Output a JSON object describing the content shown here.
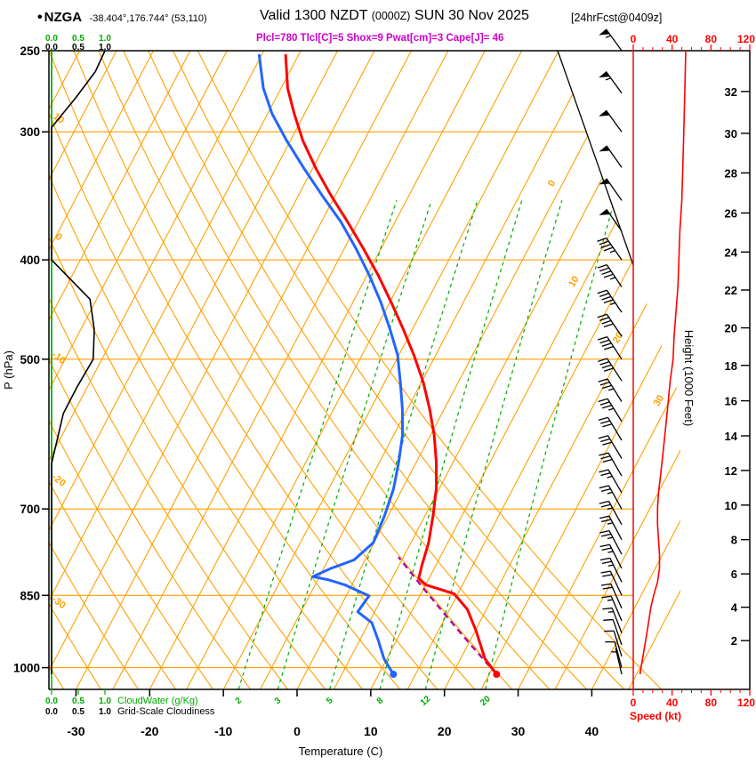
{
  "header": {
    "bullet": "•",
    "station": "NZGA",
    "coords": "-38.404°,176.744° (53,110)",
    "valid": "Valid 1300 NZDT",
    "zulu": "(0000Z)",
    "date": "SUN 30 Nov 2025",
    "fcst": "[24hrFcst@0409z]",
    "indices": "Plcl=780 Tlcl[C]=5 Shox=9 Pwat[cm]=3 Cape[J]= 46"
  },
  "colors": {
    "orange": "#FFA000",
    "green": "#00AA00",
    "temp_red": "#FF0000",
    "dew_blue": "#2264FF",
    "parcel": "#AA00AA",
    "speed_red": "#FF0000",
    "magenta": "#CC00CC",
    "black": "#000000"
  },
  "chart_data": {
    "type": "skewt-logp-sounding",
    "pressure_axis": {
      "label": "P (hPa)",
      "ticks": [
        250,
        300,
        400,
        500,
        700,
        850,
        1000
      ],
      "range": [
        250,
        1050
      ]
    },
    "temperature_axis": {
      "label": "Temperature (C)",
      "ticks": [
        -30,
        -20,
        -10,
        0,
        10,
        20,
        30,
        40
      ]
    },
    "height_axis": {
      "label": "Height (1000 Feet)",
      "ticks": [
        2,
        4,
        6,
        8,
        10,
        12,
        14,
        16,
        18,
        20,
        22,
        24,
        26,
        28,
        30,
        32
      ],
      "ft_to_hpa": [
        [
          2,
          941
        ],
        [
          4,
          873
        ],
        [
          6,
          810
        ],
        [
          8,
          750
        ],
        [
          10,
          694
        ],
        [
          12,
          642
        ],
        [
          14,
          594
        ],
        [
          16,
          549
        ],
        [
          18,
          507
        ],
        [
          20,
          466
        ],
        [
          22,
          428
        ],
        [
          24,
          393
        ],
        [
          26,
          360
        ],
        [
          28,
          329
        ],
        [
          30,
          301
        ],
        [
          32,
          274
        ]
      ]
    },
    "speed_axis": {
      "label": "Speed (kt)",
      "ticks": [
        0,
        40,
        80,
        120
      ],
      "minor_step": 10,
      "max": 120
    },
    "cloudwater_axis": {
      "label": "CloudWater (g/Kg)",
      "ticks": [
        "0.0",
        "0.5",
        "1.0"
      ]
    },
    "cloudiness_axis": {
      "label": "Grid-Scale Cloudiness",
      "ticks": [
        "0.0",
        "0.5",
        "1.0"
      ]
    },
    "isotherm_step": 5,
    "adiabat_step": 5,
    "isotherm_labels": [
      [
        0,
        340
      ],
      [
        10,
        424
      ],
      [
        20,
        481
      ],
      [
        30,
        554
      ]
    ],
    "adiabat_labels": [
      10,
      0,
      -10,
      -20,
      -30
    ],
    "mixing_ratio_lines": [
      2,
      3,
      5,
      8,
      12,
      20
    ],
    "temperature_profile": [
      [
        1015,
        26.0
      ],
      [
        980,
        23.3
      ],
      [
        920,
        20.1
      ],
      [
        877,
        17.4
      ],
      [
        847,
        14.5
      ],
      [
        830,
        10.0
      ],
      [
        818,
        8.6
      ],
      [
        794,
        8.1
      ],
      [
        755,
        7.4
      ],
      [
        711,
        6.1
      ],
      [
        669,
        4.6
      ],
      [
        630,
        2.7
      ],
      [
        593,
        0.5
      ],
      [
        559,
        -2.0
      ],
      [
        526,
        -4.8
      ],
      [
        495,
        -8.0
      ],
      [
        467,
        -11.3
      ],
      [
        440,
        -14.8
      ],
      [
        414,
        -18.5
      ],
      [
        390,
        -22.4
      ],
      [
        367,
        -26.5
      ],
      [
        346,
        -30.6
      ],
      [
        326,
        -34.5
      ],
      [
        306,
        -38.3
      ],
      [
        288,
        -41.4
      ],
      [
        272,
        -44.1
      ],
      [
        252,
        -46.8
      ]
    ],
    "dewpoint_profile": [
      [
        1015,
        12.0
      ],
      [
        980,
        9.6
      ],
      [
        940,
        7.5
      ],
      [
        904,
        5.4
      ],
      [
        882,
        2.7
      ],
      [
        851,
        3.1
      ],
      [
        830,
        -1.0
      ],
      [
        821,
        -3.5
      ],
      [
        815,
        -5.9
      ],
      [
        800,
        -4.0
      ],
      [
        785,
        -1.5
      ],
      [
        755,
        -0.1
      ],
      [
        711,
        -0.5
      ],
      [
        669,
        -1.2
      ],
      [
        630,
        -2.4
      ],
      [
        593,
        -3.8
      ],
      [
        559,
        -5.7
      ],
      [
        526,
        -7.9
      ],
      [
        495,
        -10.2
      ],
      [
        467,
        -13.1
      ],
      [
        440,
        -16.2
      ],
      [
        414,
        -19.7
      ],
      [
        390,
        -23.4
      ],
      [
        367,
        -27.4
      ],
      [
        346,
        -31.8
      ],
      [
        326,
        -36.1
      ],
      [
        306,
        -40.5
      ],
      [
        288,
        -44.4
      ],
      [
        272,
        -47.4
      ],
      [
        252,
        -50.4
      ]
    ],
    "parcel": {
      "p_surface": 1015,
      "t_surface": 26.0,
      "p_lcl": 780,
      "t_lcl": 5.0
    },
    "wind_profile": [
      [
        1015,
        7,
        347
      ],
      [
        1000,
        8,
        345
      ],
      [
        975,
        10,
        343
      ],
      [
        950,
        12,
        341
      ],
      [
        925,
        14,
        339
      ],
      [
        900,
        16,
        337
      ],
      [
        875,
        18,
        336
      ],
      [
        850,
        21,
        335
      ],
      [
        825,
        25,
        334
      ],
      [
        800,
        27,
        333
      ],
      [
        775,
        27,
        332
      ],
      [
        750,
        26,
        332
      ],
      [
        725,
        25,
        331
      ],
      [
        700,
        25,
        331
      ],
      [
        675,
        26,
        330
      ],
      [
        650,
        28,
        330
      ],
      [
        625,
        30,
        329
      ],
      [
        600,
        32,
        329
      ],
      [
        575,
        34,
        328
      ],
      [
        550,
        36,
        328
      ],
      [
        525,
        38,
        327
      ],
      [
        500,
        41,
        327
      ],
      [
        475,
        42,
        326
      ],
      [
        450,
        44,
        326
      ],
      [
        425,
        46,
        326
      ],
      [
        400,
        47,
        325
      ],
      [
        375,
        48,
        325
      ],
      [
        350,
        50,
        325
      ],
      [
        325,
        51,
        325
      ],
      [
        300,
        52,
        324
      ],
      [
        275,
        53,
        324
      ],
      [
        250,
        54,
        324
      ]
    ],
    "cloudiness_profile": [
      [
        250,
        1.0
      ],
      [
        262,
        0.82
      ],
      [
        278,
        0.45
      ],
      [
        297,
        0.0
      ],
      [
        400,
        0.0
      ],
      [
        437,
        0.72
      ],
      [
        468,
        0.8
      ],
      [
        500,
        0.78
      ],
      [
        532,
        0.48
      ],
      [
        565,
        0.22
      ],
      [
        632,
        0.0
      ],
      [
        1015,
        0.0
      ]
    ],
    "cloudwater_profile": [
      [
        250,
        0.0
      ],
      [
        1015,
        0.0
      ]
    ]
  }
}
